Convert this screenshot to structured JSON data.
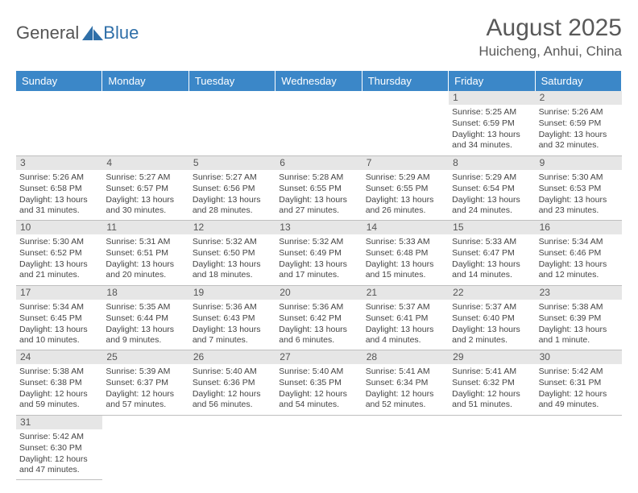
{
  "logo": {
    "text_left": "General",
    "text_right": "Blue",
    "icon_color": "#2f6fa8"
  },
  "header": {
    "title": "August 2025",
    "location": "Huicheng, Anhui, China"
  },
  "colors": {
    "header_bg": "#3b87c8",
    "header_text": "#ffffff",
    "daynum_bg": "#e6e6e6",
    "border": "#bfbfbf",
    "text": "#444444"
  },
  "calendar": {
    "day_names": [
      "Sunday",
      "Monday",
      "Tuesday",
      "Wednesday",
      "Thursday",
      "Friday",
      "Saturday"
    ],
    "leading_blanks": 5,
    "days": [
      {
        "n": "1",
        "sunrise": "5:25 AM",
        "sunset": "6:59 PM",
        "dl": "13 hours and 34 minutes."
      },
      {
        "n": "2",
        "sunrise": "5:26 AM",
        "sunset": "6:59 PM",
        "dl": "13 hours and 32 minutes."
      },
      {
        "n": "3",
        "sunrise": "5:26 AM",
        "sunset": "6:58 PM",
        "dl": "13 hours and 31 minutes."
      },
      {
        "n": "4",
        "sunrise": "5:27 AM",
        "sunset": "6:57 PM",
        "dl": "13 hours and 30 minutes."
      },
      {
        "n": "5",
        "sunrise": "5:27 AM",
        "sunset": "6:56 PM",
        "dl": "13 hours and 28 minutes."
      },
      {
        "n": "6",
        "sunrise": "5:28 AM",
        "sunset": "6:55 PM",
        "dl": "13 hours and 27 minutes."
      },
      {
        "n": "7",
        "sunrise": "5:29 AM",
        "sunset": "6:55 PM",
        "dl": "13 hours and 26 minutes."
      },
      {
        "n": "8",
        "sunrise": "5:29 AM",
        "sunset": "6:54 PM",
        "dl": "13 hours and 24 minutes."
      },
      {
        "n": "9",
        "sunrise": "5:30 AM",
        "sunset": "6:53 PM",
        "dl": "13 hours and 23 minutes."
      },
      {
        "n": "10",
        "sunrise": "5:30 AM",
        "sunset": "6:52 PM",
        "dl": "13 hours and 21 minutes."
      },
      {
        "n": "11",
        "sunrise": "5:31 AM",
        "sunset": "6:51 PM",
        "dl": "13 hours and 20 minutes."
      },
      {
        "n": "12",
        "sunrise": "5:32 AM",
        "sunset": "6:50 PM",
        "dl": "13 hours and 18 minutes."
      },
      {
        "n": "13",
        "sunrise": "5:32 AM",
        "sunset": "6:49 PM",
        "dl": "13 hours and 17 minutes."
      },
      {
        "n": "14",
        "sunrise": "5:33 AM",
        "sunset": "6:48 PM",
        "dl": "13 hours and 15 minutes."
      },
      {
        "n": "15",
        "sunrise": "5:33 AM",
        "sunset": "6:47 PM",
        "dl": "13 hours and 14 minutes."
      },
      {
        "n": "16",
        "sunrise": "5:34 AM",
        "sunset": "6:46 PM",
        "dl": "13 hours and 12 minutes."
      },
      {
        "n": "17",
        "sunrise": "5:34 AM",
        "sunset": "6:45 PM",
        "dl": "13 hours and 10 minutes."
      },
      {
        "n": "18",
        "sunrise": "5:35 AM",
        "sunset": "6:44 PM",
        "dl": "13 hours and 9 minutes."
      },
      {
        "n": "19",
        "sunrise": "5:36 AM",
        "sunset": "6:43 PM",
        "dl": "13 hours and 7 minutes."
      },
      {
        "n": "20",
        "sunrise": "5:36 AM",
        "sunset": "6:42 PM",
        "dl": "13 hours and 6 minutes."
      },
      {
        "n": "21",
        "sunrise": "5:37 AM",
        "sunset": "6:41 PM",
        "dl": "13 hours and 4 minutes."
      },
      {
        "n": "22",
        "sunrise": "5:37 AM",
        "sunset": "6:40 PM",
        "dl": "13 hours and 2 minutes."
      },
      {
        "n": "23",
        "sunrise": "5:38 AM",
        "sunset": "6:39 PM",
        "dl": "13 hours and 1 minute."
      },
      {
        "n": "24",
        "sunrise": "5:38 AM",
        "sunset": "6:38 PM",
        "dl": "12 hours and 59 minutes."
      },
      {
        "n": "25",
        "sunrise": "5:39 AM",
        "sunset": "6:37 PM",
        "dl": "12 hours and 57 minutes."
      },
      {
        "n": "26",
        "sunrise": "5:40 AM",
        "sunset": "6:36 PM",
        "dl": "12 hours and 56 minutes."
      },
      {
        "n": "27",
        "sunrise": "5:40 AM",
        "sunset": "6:35 PM",
        "dl": "12 hours and 54 minutes."
      },
      {
        "n": "28",
        "sunrise": "5:41 AM",
        "sunset": "6:34 PM",
        "dl": "12 hours and 52 minutes."
      },
      {
        "n": "29",
        "sunrise": "5:41 AM",
        "sunset": "6:32 PM",
        "dl": "12 hours and 51 minutes."
      },
      {
        "n": "30",
        "sunrise": "5:42 AM",
        "sunset": "6:31 PM",
        "dl": "12 hours and 49 minutes."
      },
      {
        "n": "31",
        "sunrise": "5:42 AM",
        "sunset": "6:30 PM",
        "dl": "12 hours and 47 minutes."
      }
    ],
    "labels": {
      "sunrise_prefix": "Sunrise: ",
      "sunset_prefix": "Sunset: ",
      "daylight_prefix": "Daylight: "
    }
  }
}
